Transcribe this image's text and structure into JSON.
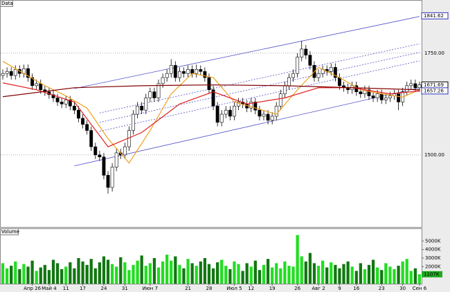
{
  "chart_data": {
    "type": "candlestick",
    "price_panel_label": "Data",
    "volume_panel_label": "Volume",
    "categories": [
      null,
      null,
      null,
      null,
      null,
      null,
      null,
      "Апр 26",
      null,
      null,
      null,
      "Май 4",
      null,
      null,
      null,
      "11",
      null,
      null,
      null,
      "17",
      null,
      null,
      null,
      null,
      "24",
      null,
      null,
      null,
      null,
      "31",
      null,
      null,
      null,
      null,
      null,
      "Июн 7",
      null,
      null,
      null,
      null,
      null,
      null,
      null,
      null,
      "21",
      null,
      null,
      null,
      null,
      "28",
      null,
      null,
      null,
      null,
      null,
      "Июл 5",
      null,
      null,
      null,
      "12",
      null,
      null,
      null,
      null,
      "19",
      null,
      null,
      null,
      null,
      null,
      "26",
      null,
      null,
      null,
      null,
      "Авг 2",
      null,
      null,
      null,
      null,
      "9",
      null,
      null,
      null,
      "16",
      null,
      null,
      null,
      null,
      null,
      "23",
      null,
      null,
      null,
      null,
      "30",
      null,
      null,
      null,
      "Сен 6"
    ],
    "open": [
      1695,
      1700,
      1705,
      1695,
      1710,
      1700,
      1712,
      1690,
      1670,
      1675,
      1660,
      1655,
      1648,
      1640,
      1630,
      1625,
      1635,
      1620,
      1610,
      1590,
      1575,
      1560,
      1520,
      1500,
      1495,
      1450,
      1420,
      1470,
      1505,
      1500,
      1520,
      1560,
      1600,
      1620,
      1610,
      1640,
      1655,
      1640,
      1675,
      1690,
      1700,
      1720,
      1690,
      1705,
      1700,
      1710,
      1700,
      1710,
      1705,
      1690,
      1660,
      1620,
      1580,
      1600,
      1610,
      1595,
      1620,
      1630,
      1625,
      1615,
      1630,
      1610,
      1595,
      1600,
      1585,
      1595,
      1620,
      1650,
      1670,
      1690,
      1700,
      1740,
      1760,
      1745,
      1720,
      1690,
      1700,
      1710,
      1705,
      1715,
      1690,
      1670,
      1665,
      1660,
      1670,
      1655,
      1650,
      1660,
      1645,
      1640,
      1650,
      1635,
      1640,
      1645,
      1650,
      1630,
      1655,
      1670,
      1675,
      1665
    ],
    "high": [
      1710,
      1715,
      1715,
      1720,
      1720,
      1722,
      1722,
      1700,
      1685,
      1685,
      1670,
      1665,
      1658,
      1650,
      1640,
      1645,
      1645,
      1630,
      1620,
      1600,
      1585,
      1570,
      1530,
      1510,
      1505,
      1460,
      1480,
      1515,
      1515,
      1530,
      1570,
      1610,
      1630,
      1630,
      1650,
      1665,
      1665,
      1685,
      1700,
      1710,
      1735,
      1730,
      1715,
      1715,
      1720,
      1720,
      1722,
      1720,
      1715,
      1700,
      1670,
      1630,
      1610,
      1620,
      1620,
      1630,
      1640,
      1640,
      1635,
      1640,
      1640,
      1620,
      1610,
      1610,
      1605,
      1630,
      1660,
      1680,
      1700,
      1710,
      1750,
      1780,
      1770,
      1755,
      1730,
      1710,
      1720,
      1720,
      1725,
      1725,
      1700,
      1680,
      1675,
      1680,
      1680,
      1665,
      1670,
      1670,
      1655,
      1660,
      1660,
      1650,
      1655,
      1660,
      1660,
      1665,
      1680,
      1685,
      1685,
      1680
    ],
    "low": [
      1685,
      1690,
      1685,
      1685,
      1690,
      1690,
      1680,
      1660,
      1660,
      1650,
      1645,
      1638,
      1630,
      1620,
      1615,
      1615,
      1610,
      1600,
      1580,
      1565,
      1550,
      1510,
      1490,
      1485,
      1440,
      1405,
      1410,
      1460,
      1490,
      1490,
      1510,
      1550,
      1590,
      1600,
      1600,
      1630,
      1630,
      1630,
      1665,
      1680,
      1690,
      1680,
      1680,
      1690,
      1690,
      1690,
      1690,
      1695,
      1680,
      1650,
      1610,
      1570,
      1570,
      1590,
      1585,
      1585,
      1610,
      1615,
      1605,
      1605,
      1600,
      1585,
      1585,
      1575,
      1575,
      1585,
      1610,
      1640,
      1660,
      1680,
      1690,
      1730,
      1735,
      1710,
      1680,
      1680,
      1690,
      1695,
      1695,
      1680,
      1660,
      1655,
      1650,
      1650,
      1645,
      1640,
      1640,
      1635,
      1630,
      1630,
      1625,
      1625,
      1630,
      1635,
      1610,
      1620,
      1645,
      1660,
      1655,
      1655
    ],
    "close": [
      1700,
      1705,
      1695,
      1710,
      1700,
      1712,
      1690,
      1670,
      1675,
      1660,
      1655,
      1648,
      1640,
      1630,
      1625,
      1635,
      1620,
      1610,
      1590,
      1575,
      1560,
      1520,
      1500,
      1495,
      1450,
      1420,
      1470,
      1505,
      1500,
      1520,
      1560,
      1600,
      1620,
      1610,
      1640,
      1655,
      1640,
      1675,
      1690,
      1700,
      1720,
      1690,
      1705,
      1700,
      1710,
      1700,
      1710,
      1705,
      1690,
      1660,
      1620,
      1580,
      1600,
      1610,
      1595,
      1620,
      1630,
      1625,
      1615,
      1630,
      1610,
      1595,
      1600,
      1585,
      1595,
      1620,
      1650,
      1670,
      1690,
      1700,
      1740,
      1760,
      1745,
      1720,
      1690,
      1700,
      1710,
      1705,
      1715,
      1690,
      1670,
      1665,
      1660,
      1670,
      1655,
      1650,
      1660,
      1645,
      1640,
      1650,
      1635,
      1640,
      1645,
      1650,
      1630,
      1655,
      1670,
      1675,
      1665,
      1672
    ],
    "up_color": "#ffffff",
    "down_color": "#000000",
    "ylim": [
      1323,
      1872
    ],
    "yticks": [
      {
        "value": 1500,
        "label": "1500.00"
      },
      {
        "value": 1750,
        "label": "1750.00"
      }
    ],
    "grid": true,
    "price_markers": [
      {
        "value": 1841.62,
        "label": "1841.62",
        "color": "#3030c0"
      },
      {
        "value": 1671.69,
        "label": "1671.69",
        "color": "#000000"
      },
      {
        "value": 1657.26,
        "label": "1657.26",
        "color": "#3030c0"
      }
    ],
    "overlays": [
      {
        "color": "#f0a020",
        "x": [
          0,
          5,
          10,
          15,
          20,
          25,
          30,
          35,
          40,
          45,
          50,
          55,
          60,
          65,
          70,
          75,
          80,
          85,
          90,
          95,
          99
        ],
        "values": [
          1730,
          1700,
          1670,
          1645,
          1615,
          1540,
          1480,
          1560,
          1650,
          1700,
          1690,
          1630,
          1615,
          1600,
          1660,
          1715,
          1690,
          1660,
          1650,
          1642,
          1660
        ]
      },
      {
        "color": "#e02020",
        "x": [
          0,
          8,
          17,
          25,
          33,
          42,
          50,
          58,
          67,
          75,
          83,
          92,
          99
        ],
        "values": [
          1677,
          1660,
          1630,
          1520,
          1555,
          1625,
          1655,
          1625,
          1640,
          1665,
          1665,
          1650,
          1657
        ]
      },
      {
        "color": "#800000",
        "x": [
          0,
          17,
          33,
          50,
          67,
          83,
          99
        ],
        "values": [
          1643,
          1665,
          1670,
          1672,
          1670,
          1665,
          1660
        ]
      }
    ],
    "channel": [
      {
        "color": "#5050c8",
        "dashed": false,
        "x": [
          17,
          99
        ],
        "values": [
          1663,
          1840
        ]
      },
      {
        "color": "#5050c8",
        "dashed": false,
        "x": [
          17,
          99
        ],
        "values": [
          1473,
          1665
        ]
      },
      {
        "color": "#5050c8",
        "dashed": true,
        "x": [
          23,
          99
        ],
        "values": [
          1603,
          1773
        ]
      },
      {
        "color": "#5050c8",
        "dashed": true,
        "x": [
          23,
          99
        ],
        "values": [
          1580,
          1752
        ]
      },
      {
        "color": "#5050c8",
        "dashed": true,
        "x": [
          23,
          99
        ],
        "values": [
          1558,
          1731
        ]
      }
    ],
    "volume": {
      "values": [
        2400,
        1800,
        2100,
        2600,
        1700,
        2300,
        2000,
        2700,
        1500,
        1900,
        2200,
        1600,
        2800,
        2400,
        1700,
        2000,
        2500,
        1800,
        3000,
        2600,
        2200,
        2900,
        1800,
        2500,
        3200,
        2800,
        2300,
        2000,
        3100,
        2500,
        1600,
        2200,
        2700,
        3300,
        2100,
        2400,
        3000,
        1900,
        2600,
        3400,
        2700,
        3200,
        2200,
        1800,
        2900,
        2400,
        2100,
        2600,
        3000,
        2300,
        1800,
        2500,
        2800,
        2100,
        1700,
        2600,
        2300,
        1500,
        2400,
        2000,
        2700,
        1600,
        2200,
        2900,
        1900,
        2400,
        1800,
        2600,
        2100,
        2000,
        5700,
        3200,
        2600,
        3600,
        2400,
        2100,
        2700,
        1900,
        2500,
        2200,
        1800,
        2300,
        2600,
        2000,
        1500,
        2400,
        1700,
        2200,
        2800,
        1900,
        1600,
        2400,
        2000,
        1700,
        2100,
        2600,
        2900,
        1500,
        1800,
        1107
      ],
      "up_color": "#22dd22",
      "down_color": "#117711",
      "ylim": [
        0,
        6400
      ],
      "yticks": [
        {
          "value": 2000,
          "label": "2000K"
        },
        {
          "value": 3000,
          "label": "3000K"
        },
        {
          "value": 4000,
          "label": "4000K"
        },
        {
          "value": 5000,
          "label": "5000K"
        }
      ],
      "marker": {
        "value": 1107,
        "label": "1107K",
        "color": "#22aa22"
      }
    }
  }
}
